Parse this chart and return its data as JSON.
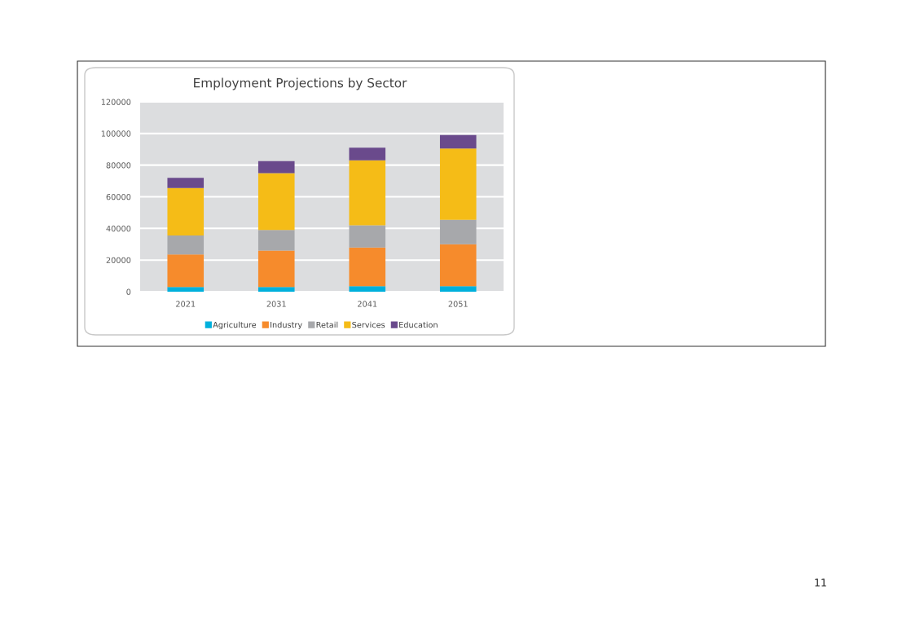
{
  "chart_data": {
    "type": "bar",
    "title": "Employment Projections by Sector",
    "stacked": true,
    "categories": [
      "2021",
      "2031",
      "2041",
      "2051"
    ],
    "series": [
      {
        "name": "Agriculture",
        "color": "#00b0dc",
        "values": [
          3000,
          3000,
          3500,
          3500
        ]
      },
      {
        "name": "Industry",
        "color": "#f68b2c",
        "values": [
          20500,
          23000,
          24500,
          26500
        ]
      },
      {
        "name": "Retail",
        "color": "#a7a8ab",
        "values": [
          12000,
          13000,
          14000,
          15500
        ]
      },
      {
        "name": "Services",
        "color": "#f5bc17",
        "values": [
          30000,
          36000,
          41000,
          45000
        ]
      },
      {
        "name": "Education",
        "color": "#6a4a8c",
        "values": [
          6500,
          7500,
          8000,
          8500
        ]
      }
    ],
    "ylim": [
      0,
      120000
    ],
    "yticks": [
      0,
      20000,
      40000,
      60000,
      80000,
      100000,
      120000
    ],
    "grid": "y",
    "legend": "bottom",
    "annotations": [
      "11"
    ]
  }
}
